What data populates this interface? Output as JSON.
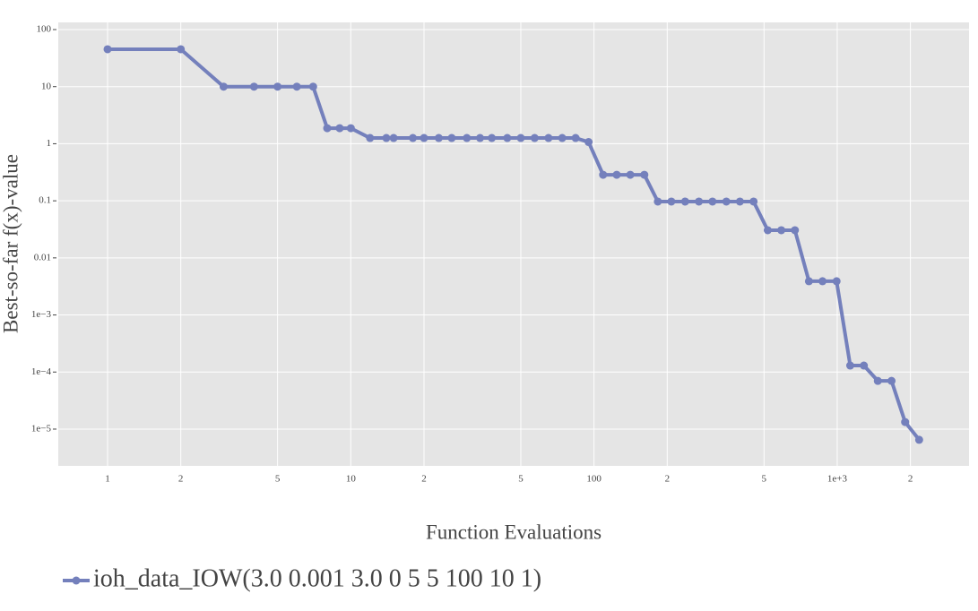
{
  "chart_data": {
    "type": "line",
    "x_label": "Function Evaluations",
    "y_label": "Best-so-far f(x)-value",
    "x": [
      1,
      2,
      3,
      4,
      5,
      6,
      7,
      8,
      9,
      10,
      12,
      14,
      15,
      18,
      20,
      23,
      26,
      30,
      34,
      38,
      44,
      50,
      57,
      65,
      74,
      84,
      95,
      109,
      124,
      141,
      161,
      183,
      208,
      237,
      270,
      307,
      350,
      398,
      453,
      518,
      589,
      670,
      765,
      870,
      994,
      1131,
      1287,
      1469,
      1672,
      1902,
      2172
    ],
    "series": [
      {
        "name": "ioh_data_IOW(3.0 0.001 3.0 0 5 5 100 10 1)",
        "color": "#7480bc",
        "values": [
          45.2,
          45.2,
          10,
          10,
          10,
          10,
          10,
          1.87,
          1.87,
          1.87,
          1.26,
          1.26,
          1.26,
          1.26,
          1.26,
          1.26,
          1.26,
          1.26,
          1.26,
          1.26,
          1.26,
          1.26,
          1.26,
          1.26,
          1.26,
          1.26,
          1.07,
          0.286,
          0.286,
          0.286,
          0.286,
          0.097,
          0.097,
          0.097,
          0.097,
          0.097,
          0.097,
          0.097,
          0.097,
          0.0305,
          0.0305,
          0.0305,
          0.0039,
          0.0039,
          0.0039,
          0.00013,
          0.00013,
          7e-05,
          7e-05,
          1.33e-05,
          6.5e-06
        ]
      }
    ],
    "x_log": true,
    "y_log": true,
    "grid": true,
    "legend": "bottom-left",
    "xlim": [
      0.627,
      3483
    ],
    "ylim": [
      2.27e-06,
      133.6
    ],
    "xticks": [
      1,
      2,
      5,
      10,
      {
        "value": 20,
        "label": "2"
      },
      {
        "value": 50,
        "label": "5"
      },
      100,
      {
        "value": 200,
        "label": "2"
      },
      {
        "value": 500,
        "label": "5"
      },
      {
        "value": 1000,
        "label": "1e+3"
      },
      {
        "value": 2000,
        "label": "2"
      }
    ],
    "yticks": [
      100,
      10,
      1,
      0.1,
      0.01,
      {
        "value": 0.001,
        "label": "1e−3"
      },
      {
        "value": 0.0001,
        "label": "1e−4"
      },
      {
        "value": 1e-05,
        "label": "1e−5"
      }
    ]
  }
}
